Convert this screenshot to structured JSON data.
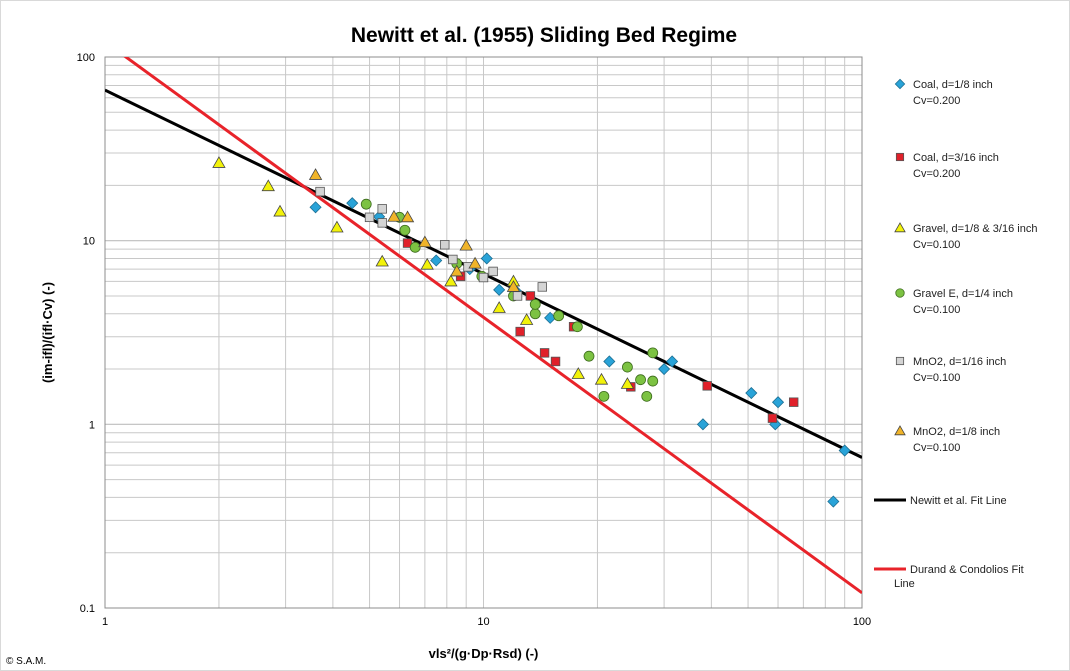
{
  "chart_data": {
    "type": "scatter",
    "title": "Newitt et al. (1955) Sliding Bed Regime",
    "xlabel": "vls²/(g·Dp·Rsd) (-)",
    "ylabel": "(im-ifl)/(ifl·Cv) (-)",
    "xscale": "log",
    "yscale": "log",
    "xlim": [
      1,
      100
    ],
    "ylim": [
      0.1,
      100
    ],
    "x_ticks": [
      "1",
      "10",
      "100"
    ],
    "y_ticks": [
      "0.1",
      "1",
      "10",
      "100"
    ],
    "grid": true,
    "legend_position": "right",
    "series": [
      {
        "name": "Coal, d=1/8 inch",
        "sub": "Cv=0.200",
        "marker": "diamond",
        "color": "#29a3d8",
        "points": [
          [
            3.6,
            15.2
          ],
          [
            4.5,
            16.0
          ],
          [
            5.3,
            13.5
          ],
          [
            7.5,
            7.8
          ],
          [
            9.2,
            7.0
          ],
          [
            10.2,
            8.0
          ],
          [
            11,
            5.4
          ],
          [
            12.2,
            5.3
          ],
          [
            15,
            3.8
          ],
          [
            21.5,
            2.2
          ],
          [
            30,
            2.0
          ],
          [
            31.5,
            2.2
          ],
          [
            38,
            1.0
          ],
          [
            51,
            1.48
          ],
          [
            59,
            1.0
          ],
          [
            60,
            1.32
          ],
          [
            84,
            0.38
          ],
          [
            90,
            0.72
          ]
        ]
      },
      {
        "name": "Coal, d=3/16 inch",
        "sub": "Cv=0.200",
        "marker": "square",
        "color": "#e0202a",
        "points": [
          [
            6.3,
            9.7
          ],
          [
            8.7,
            6.4
          ],
          [
            12.5,
            3.2
          ],
          [
            13.3,
            5.0
          ],
          [
            14.5,
            2.45
          ],
          [
            15.5,
            2.2
          ],
          [
            17.3,
            3.4
          ],
          [
            24.5,
            1.6
          ],
          [
            39,
            1.62
          ],
          [
            58,
            1.08
          ],
          [
            66,
            1.32
          ]
        ]
      },
      {
        "name": "Gravel, d=1/8 & 3/16 inch",
        "sub": "Cv=0.100",
        "marker": "triangle",
        "color": "#f2f20a",
        "points": [
          [
            2.0,
            26.5
          ],
          [
            2.7,
            19.8
          ],
          [
            2.9,
            14.4
          ],
          [
            4.1,
            11.8
          ],
          [
            5.4,
            7.7
          ],
          [
            7.1,
            7.4
          ],
          [
            8.2,
            6.0
          ],
          [
            11,
            4.3
          ],
          [
            12,
            6.0
          ],
          [
            13,
            3.7
          ],
          [
            17.8,
            1.88
          ],
          [
            20.5,
            1.75
          ],
          [
            24,
            1.66
          ]
        ]
      },
      {
        "name": "Gravel E, d=1/4 inch",
        "sub": "Cv=0.100",
        "marker": "circle",
        "color": "#7cc242",
        "points": [
          [
            4.9,
            15.8
          ],
          [
            6.0,
            13.4
          ],
          [
            6.2,
            11.4
          ],
          [
            6.6,
            9.2
          ],
          [
            8.5,
            7.5
          ],
          [
            9.9,
            6.4
          ],
          [
            12,
            5.0
          ],
          [
            13.7,
            4.0
          ],
          [
            13.7,
            4.5
          ],
          [
            15.8,
            3.9
          ],
          [
            17.7,
            3.4
          ],
          [
            19,
            2.35
          ],
          [
            20.8,
            1.42
          ],
          [
            24,
            2.05
          ],
          [
            26,
            1.75
          ],
          [
            27,
            1.42
          ],
          [
            28,
            1.72
          ],
          [
            28,
            2.45
          ]
        ]
      },
      {
        "name": "MnO2, d=1/16 inch",
        "sub": "Cv=0.100",
        "marker": "square",
        "color": "#d4d4d4",
        "points": [
          [
            3.7,
            18.5
          ],
          [
            5.0,
            13.4
          ],
          [
            5.4,
            14.9
          ],
          [
            5.4,
            12.5
          ],
          [
            7.9,
            9.5
          ],
          [
            8.3,
            7.9
          ],
          [
            9.1,
            7.2
          ],
          [
            10,
            6.3
          ],
          [
            10.6,
            6.8
          ],
          [
            12.3,
            5.0
          ],
          [
            14.3,
            5.6
          ]
        ]
      },
      {
        "name": "MnO2, d=1/8 inch",
        "sub": "Cv=0.100",
        "marker": "triangle",
        "color": "#f0b429",
        "points": [
          [
            3.6,
            22.8
          ],
          [
            5.8,
            13.5
          ],
          [
            6.3,
            13.4
          ],
          [
            7.0,
            9.8
          ],
          [
            8.5,
            6.8
          ],
          [
            9.0,
            9.4
          ],
          [
            9.5,
            7.5
          ],
          [
            12,
            5.6
          ]
        ]
      },
      {
        "name": "Newitt et al. Fit Line",
        "sub": "",
        "marker": "line",
        "color": "#000000",
        "points": [
          [
            1,
            66
          ],
          [
            100,
            0.66
          ]
        ]
      },
      {
        "name": "Durand & Condolios Fit Line",
        "sub": "",
        "marker": "line",
        "color": "#e8232a",
        "points": [
          [
            1,
            121
          ],
          [
            100,
            0.121
          ]
        ]
      }
    ]
  },
  "footer": {
    "credit": "© S.A.M."
  }
}
